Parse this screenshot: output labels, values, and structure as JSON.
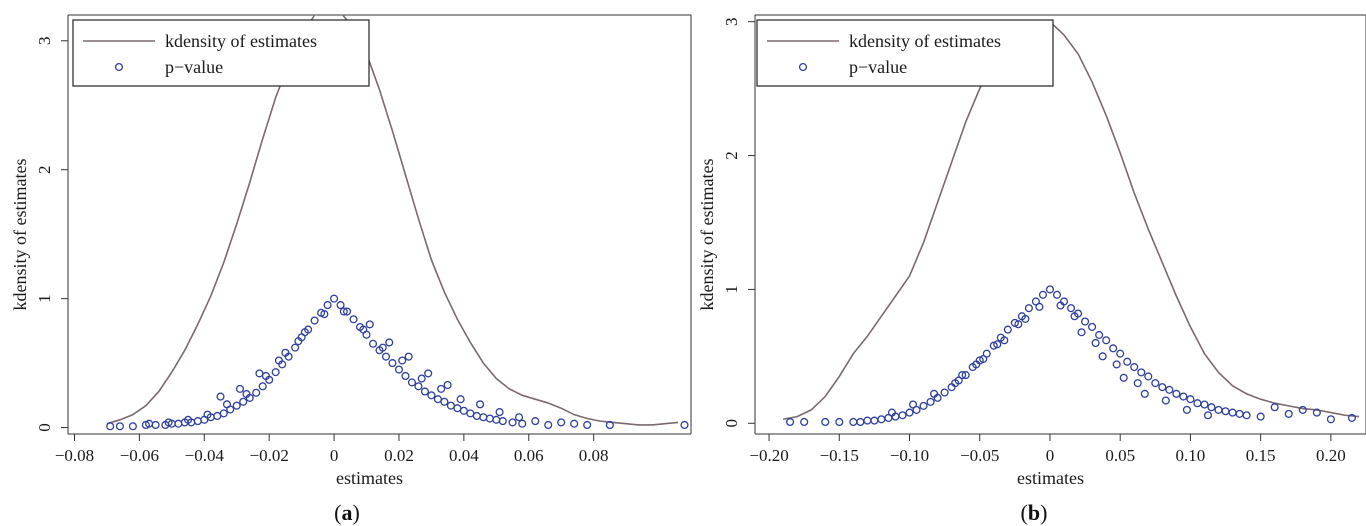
{
  "colors": {
    "density": "#7a6a6f",
    "pvalue": "#2f3f9e",
    "axis": "#333333"
  },
  "chart_data": [
    {
      "type": "scatter",
      "panel_label": "(a)",
      "xlabel": "estimates",
      "ylabel": "kdensity of estimates",
      "xlim": [
        -0.082,
        0.11
      ],
      "ylim": [
        -0.05,
        3.2
      ],
      "xticks": [
        -0.08,
        -0.06,
        -0.04,
        -0.02,
        0,
        0.02,
        0.04,
        0.06,
        0.08
      ],
      "xtick_labels": [
        "−0.08",
        "−0.06",
        "−0.04",
        "−0.02",
        "0",
        "0.02",
        "0.04",
        "0.06",
        "0.08"
      ],
      "yticks": [
        0,
        1,
        2,
        3
      ],
      "ytick_labels": [
        "0",
        "1",
        "2",
        "3"
      ],
      "legend": {
        "position": "top-left",
        "entries": [
          "kdensity of estimates",
          "p−value"
        ]
      },
      "series": [
        {
          "name": "kdensity of estimates",
          "style": "line",
          "x": [
            -0.07,
            -0.066,
            -0.062,
            -0.058,
            -0.054,
            -0.05,
            -0.046,
            -0.042,
            -0.038,
            -0.034,
            -0.03,
            -0.026,
            -0.022,
            -0.018,
            -0.014,
            -0.01,
            -0.006,
            -0.002,
            0.002,
            0.006,
            0.01,
            0.014,
            0.018,
            0.022,
            0.026,
            0.03,
            0.034,
            0.038,
            0.042,
            0.046,
            0.05,
            0.054,
            0.058,
            0.062,
            0.066,
            0.07,
            0.074,
            0.078,
            0.082,
            0.086,
            0.09,
            0.094,
            0.098,
            0.102,
            0.106
          ],
          "y": [
            0.03,
            0.06,
            0.1,
            0.17,
            0.28,
            0.43,
            0.6,
            0.8,
            1.02,
            1.28,
            1.58,
            1.9,
            2.24,
            2.56,
            2.82,
            3.04,
            3.2,
            3.26,
            3.22,
            3.1,
            2.9,
            2.62,
            2.3,
            1.96,
            1.62,
            1.3,
            1.05,
            0.84,
            0.66,
            0.5,
            0.38,
            0.3,
            0.25,
            0.22,
            0.19,
            0.15,
            0.1,
            0.07,
            0.05,
            0.04,
            0.03,
            0.02,
            0.02,
            0.03,
            0.04
          ]
        },
        {
          "name": "p−value",
          "style": "markers",
          "x": [
            0,
            0.002,
            -0.002,
            0.004,
            -0.004,
            0.006,
            -0.006,
            0.008,
            -0.008,
            0.01,
            -0.01,
            0.012,
            -0.012,
            0.014,
            -0.014,
            0.016,
            -0.016,
            0.018,
            -0.018,
            0.02,
            -0.02,
            0.022,
            -0.022,
            0.024,
            -0.024,
            0.026,
            -0.026,
            0.028,
            -0.028,
            0.03,
            -0.03,
            0.032,
            -0.032,
            0.034,
            -0.034,
            0.036,
            -0.036,
            0.038,
            -0.038,
            0.04,
            -0.04,
            0.042,
            -0.042,
            0.044,
            -0.044,
            0.046,
            -0.046,
            0.048,
            -0.048,
            0.05,
            -0.05,
            0.052,
            -0.052,
            0.055,
            -0.055,
            0.058,
            -0.058,
            0.062,
            -0.062,
            0.066,
            0.07,
            -0.066,
            0.074,
            0.078,
            -0.069,
            0.085,
            0.108,
            0.003,
            -0.003,
            0.009,
            -0.009,
            0.015,
            -0.015,
            0.021,
            -0.021,
            0.027,
            -0.027,
            0.033,
            -0.033,
            0.039,
            -0.039,
            0.045,
            -0.045,
            0.051,
            -0.051,
            0.057,
            -0.057,
            0.011,
            -0.011,
            0.017,
            -0.017,
            0.023,
            -0.023,
            0.029,
            -0.029,
            0.035,
            -0.035
          ],
          "y": [
            1.0,
            0.95,
            0.95,
            0.9,
            0.89,
            0.84,
            0.83,
            0.78,
            0.76,
            0.72,
            0.7,
            0.65,
            0.62,
            0.6,
            0.55,
            0.55,
            0.49,
            0.5,
            0.43,
            0.45,
            0.37,
            0.4,
            0.32,
            0.35,
            0.27,
            0.32,
            0.23,
            0.28,
            0.2,
            0.25,
            0.17,
            0.22,
            0.14,
            0.2,
            0.11,
            0.17,
            0.09,
            0.15,
            0.08,
            0.13,
            0.06,
            0.11,
            0.05,
            0.09,
            0.04,
            0.08,
            0.04,
            0.07,
            0.03,
            0.06,
            0.03,
            0.05,
            0.02,
            0.04,
            0.02,
            0.03,
            0.02,
            0.05,
            0.01,
            0.02,
            0.04,
            0.01,
            0.03,
            0.02,
            0.01,
            0.02,
            0.02,
            0.9,
            0.88,
            0.76,
            0.74,
            0.62,
            0.58,
            0.52,
            0.4,
            0.38,
            0.26,
            0.3,
            0.18,
            0.22,
            0.1,
            0.18,
            0.06,
            0.12,
            0.04,
            0.08,
            0.03,
            0.8,
            0.67,
            0.66,
            0.52,
            0.55,
            0.42,
            0.42,
            0.3,
            0.33,
            0.24
          ]
        }
      ]
    },
    {
      "type": "scatter",
      "panel_label": "(b)",
      "xlabel": "estimates",
      "ylabel": "kdensity of estimates",
      "xlim": [
        -0.21,
        0.225
      ],
      "ylim": [
        -0.08,
        3.05
      ],
      "xticks": [
        -0.2,
        -0.15,
        -0.1,
        -0.05,
        0,
        0.05,
        0.1,
        0.15,
        0.2
      ],
      "xtick_labels": [
        "−0.20",
        "−0.15",
        "−0.10",
        "−0.05",
        "0",
        "0.05",
        "0.10",
        "0.15",
        "0.20"
      ],
      "yticks": [
        0,
        1,
        2,
        3
      ],
      "ytick_labels": [
        "0",
        "1",
        "2",
        "3"
      ],
      "legend": {
        "position": "top-left",
        "entries": [
          "kdensity of estimates",
          "p−value"
        ]
      },
      "series": [
        {
          "name": "kdensity of estimates",
          "style": "line",
          "x": [
            -0.19,
            -0.18,
            -0.17,
            -0.16,
            -0.15,
            -0.14,
            -0.13,
            -0.12,
            -0.11,
            -0.1,
            -0.09,
            -0.08,
            -0.07,
            -0.06,
            -0.05,
            -0.04,
            -0.03,
            -0.02,
            -0.01,
            0,
            0.01,
            0.02,
            0.03,
            0.04,
            0.05,
            0.06,
            0.07,
            0.08,
            0.09,
            0.1,
            0.11,
            0.12,
            0.13,
            0.14,
            0.15,
            0.16,
            0.17,
            0.18,
            0.19,
            0.2,
            0.21,
            0.22
          ],
          "y": [
            0.03,
            0.05,
            0.1,
            0.2,
            0.35,
            0.52,
            0.65,
            0.8,
            0.95,
            1.1,
            1.35,
            1.65,
            1.95,
            2.25,
            2.5,
            2.72,
            2.88,
            2.97,
            3.0,
            3.0,
            2.9,
            2.76,
            2.55,
            2.3,
            2.02,
            1.72,
            1.45,
            1.2,
            0.95,
            0.72,
            0.52,
            0.38,
            0.28,
            0.22,
            0.18,
            0.15,
            0.13,
            0.11,
            0.1,
            0.08,
            0.06,
            0.05
          ]
        },
        {
          "name": "p−value",
          "style": "markers",
          "x": [
            0,
            0.005,
            -0.005,
            0.01,
            -0.01,
            0.015,
            -0.015,
            0.02,
            -0.02,
            0.025,
            -0.025,
            0.03,
            -0.03,
            0.035,
            -0.035,
            0.04,
            -0.04,
            0.045,
            -0.045,
            0.05,
            -0.05,
            0.055,
            -0.055,
            0.06,
            -0.06,
            0.065,
            -0.065,
            0.07,
            -0.07,
            0.075,
            -0.075,
            0.08,
            -0.08,
            0.085,
            -0.085,
            0.09,
            -0.09,
            0.095,
            -0.095,
            0.1,
            -0.1,
            0.105,
            -0.105,
            0.11,
            -0.11,
            0.115,
            -0.115,
            0.12,
            -0.12,
            0.125,
            -0.125,
            0.13,
            -0.13,
            0.135,
            -0.135,
            0.14,
            -0.14,
            0.15,
            -0.15,
            0.16,
            0.17,
            0.18,
            0.19,
            0.2,
            0.215,
            -0.16,
            -0.175,
            -0.185,
            0.0075,
            -0.0075,
            0.0225,
            -0.0225,
            0.0375,
            -0.0375,
            0.0525,
            -0.0525,
            0.0675,
            -0.0675,
            0.0825,
            -0.0825,
            0.0975,
            -0.0975,
            0.1125,
            -0.1125,
            0.0175,
            -0.0175,
            0.0325,
            -0.0325,
            0.0475,
            -0.0475,
            0.0625,
            -0.0625
          ],
          "y": [
            1.0,
            0.96,
            0.96,
            0.91,
            0.91,
            0.86,
            0.86,
            0.82,
            0.8,
            0.76,
            0.75,
            0.72,
            0.7,
            0.66,
            0.64,
            0.62,
            0.58,
            0.56,
            0.52,
            0.52,
            0.47,
            0.46,
            0.42,
            0.42,
            0.36,
            0.38,
            0.32,
            0.35,
            0.27,
            0.3,
            0.23,
            0.27,
            0.19,
            0.25,
            0.16,
            0.22,
            0.13,
            0.2,
            0.1,
            0.18,
            0.08,
            0.15,
            0.06,
            0.14,
            0.05,
            0.12,
            0.04,
            0.1,
            0.03,
            0.09,
            0.02,
            0.08,
            0.02,
            0.07,
            0.01,
            0.06,
            0.01,
            0.05,
            0.01,
            0.12,
            0.07,
            0.1,
            0.08,
            0.03,
            0.04,
            0.01,
            0.01,
            0.01,
            0.88,
            0.87,
            0.68,
            0.74,
            0.5,
            0.59,
            0.34,
            0.44,
            0.22,
            0.3,
            0.17,
            0.22,
            0.1,
            0.14,
            0.06,
            0.08,
            0.8,
            0.78,
            0.6,
            0.62,
            0.44,
            0.48,
            0.3,
            0.36
          ]
        }
      ]
    }
  ]
}
